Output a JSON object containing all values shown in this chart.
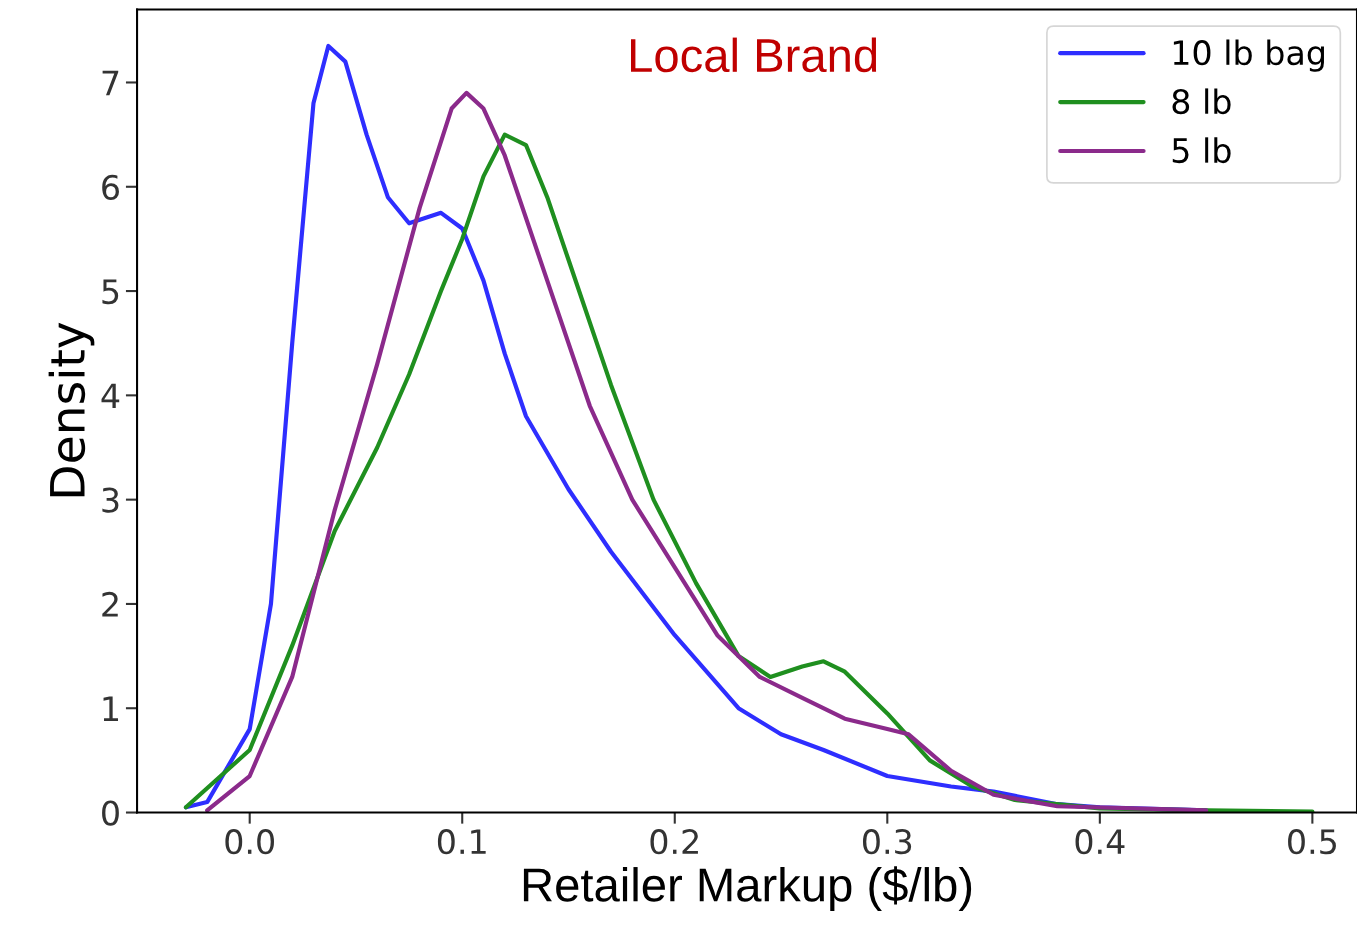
{
  "chart_data": {
    "type": "line",
    "title": "Local Brand",
    "xlabel": "Retailer Markup ($/lb)",
    "ylabel": "Density",
    "xlim": [
      -0.053,
      0.521
    ],
    "ylim": [
      0,
      7.7
    ],
    "xticks": [
      {
        "value": 0,
        "label": "0.0"
      },
      0.1,
      0.2,
      0.3,
      0.4,
      0.5
    ],
    "yticks": [
      0,
      1,
      2,
      3,
      4,
      5,
      6,
      7
    ],
    "legend": "top right",
    "grid": false,
    "marker": "none",
    "line_style": "solid",
    "series": [
      {
        "name": "10 lb bag",
        "color": "#2e2eff",
        "x": [
          -0.03,
          -0.02,
          0.0,
          0.01,
          0.02,
          0.03,
          0.037,
          0.045,
          0.055,
          0.065,
          0.075,
          0.09,
          0.1,
          0.11,
          0.12,
          0.13,
          0.15,
          0.17,
          0.2,
          0.23,
          0.25,
          0.27,
          0.3,
          0.33,
          0.35,
          0.38,
          0.4,
          0.45
        ],
        "values": [
          0.05,
          0.1,
          0.8,
          2.0,
          4.5,
          6.8,
          7.35,
          7.2,
          6.5,
          5.9,
          5.65,
          5.75,
          5.6,
          5.1,
          4.4,
          3.8,
          3.1,
          2.5,
          1.7,
          1.0,
          0.75,
          0.6,
          0.35,
          0.25,
          0.2,
          0.08,
          0.05,
          0.02
        ]
      },
      {
        "name": "8 lb",
        "color": "#1f8f1f",
        "x": [
          -0.03,
          0.0,
          0.02,
          0.04,
          0.06,
          0.075,
          0.09,
          0.1,
          0.11,
          0.12,
          0.13,
          0.14,
          0.15,
          0.17,
          0.19,
          0.21,
          0.23,
          0.245,
          0.26,
          0.27,
          0.28,
          0.3,
          0.32,
          0.34,
          0.36,
          0.4,
          0.45,
          0.5
        ],
        "values": [
          0.05,
          0.6,
          1.6,
          2.7,
          3.5,
          4.2,
          5.0,
          5.5,
          6.1,
          6.5,
          6.4,
          5.9,
          5.3,
          4.1,
          3.0,
          2.2,
          1.5,
          1.3,
          1.4,
          1.45,
          1.35,
          0.95,
          0.5,
          0.25,
          0.12,
          0.04,
          0.02,
          0.01
        ]
      },
      {
        "name": "5 lb",
        "color": "#8b2a8b",
        "x": [
          -0.02,
          0.0,
          0.02,
          0.04,
          0.06,
          0.08,
          0.095,
          0.102,
          0.11,
          0.12,
          0.14,
          0.16,
          0.18,
          0.2,
          0.22,
          0.24,
          0.26,
          0.28,
          0.3,
          0.31,
          0.33,
          0.35,
          0.38,
          0.45
        ],
        "values": [
          0.02,
          0.35,
          1.3,
          2.9,
          4.3,
          5.8,
          6.75,
          6.9,
          6.75,
          6.3,
          5.1,
          3.9,
          3.0,
          2.35,
          1.7,
          1.3,
          1.1,
          0.9,
          0.8,
          0.75,
          0.4,
          0.17,
          0.06,
          0.02
        ]
      }
    ]
  }
}
